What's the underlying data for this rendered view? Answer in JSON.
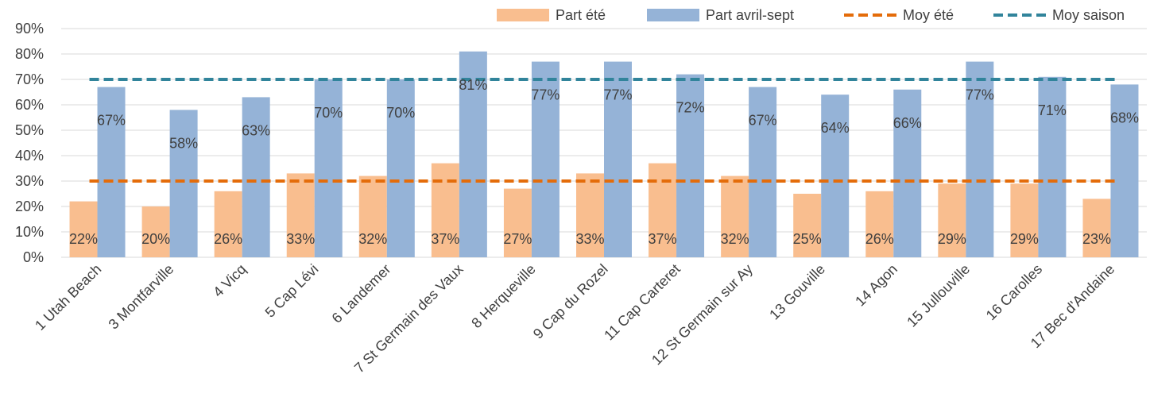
{
  "chart_data": {
    "type": "bar",
    "categories": [
      "1 Utah Beach",
      "3 Montfarville",
      "4 Vicq",
      "5 Cap Lévi",
      "6 Landemer",
      "7 St Germain des Vaux",
      "8 Herqueville",
      "9 Cap du Rozel",
      "11 Cap Carteret",
      "12 St Germain sur Ay",
      "13 Gouville",
      "14 Agon",
      "15 Jullouville",
      "16 Carolles",
      "17 Bec d'Andaine"
    ],
    "series": [
      {
        "name": "Part été",
        "kind": "bar",
        "color": "#F9BE8F",
        "values": [
          22,
          20,
          26,
          33,
          32,
          37,
          27,
          33,
          37,
          32,
          25,
          26,
          29,
          29,
          23
        ],
        "labels": [
          "22%",
          "20%",
          "26%",
          "33%",
          "32%",
          "37%",
          "27%",
          "33%",
          "37%",
          "32%",
          "25%",
          "26%",
          "29%",
          "29%",
          "23%"
        ]
      },
      {
        "name": "Part avril-sept",
        "kind": "bar",
        "color": "#95B3D7",
        "values": [
          67,
          58,
          63,
          70,
          70,
          81,
          77,
          77,
          72,
          67,
          64,
          66,
          77,
          71,
          68
        ],
        "labels": [
          "67%",
          "58%",
          "63%",
          "70%",
          "70%",
          "81%",
          "77%",
          "77%",
          "72%",
          "67%",
          "64%",
          "66%",
          "77%",
          "71%",
          "68%"
        ]
      },
      {
        "name": "Moy été",
        "kind": "dashed-line",
        "color": "#E46C0A",
        "value": 30
      },
      {
        "name": "Moy saison",
        "kind": "dashed-line",
        "color": "#31849B",
        "value": 70
      }
    ],
    "y_ticks": [
      "0%",
      "10%",
      "20%",
      "30%",
      "40%",
      "50%",
      "60%",
      "70%",
      "80%",
      "90%"
    ],
    "ylim": [
      0,
      90
    ],
    "grid": true,
    "legend_position": "top-right",
    "title": "",
    "xlabel": "",
    "ylabel": ""
  }
}
